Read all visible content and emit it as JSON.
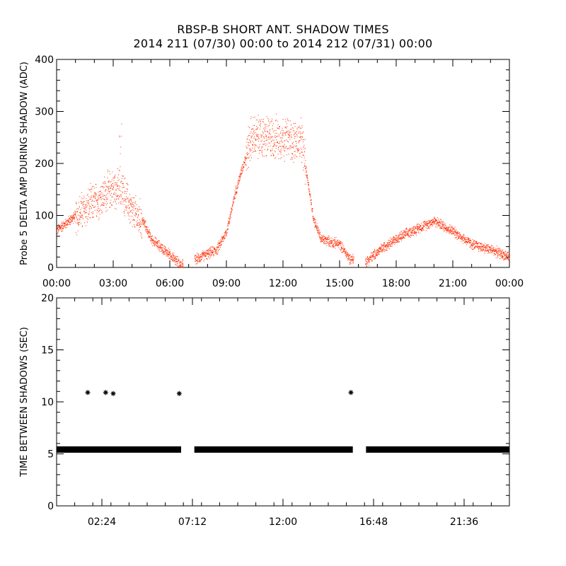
{
  "header": {
    "title_line1": "RBSP-B SHORT ANT. SHADOW TIMES",
    "title_line2": "2014 211 (07/30) 00:00 to 2014 212 (07/31) 00:00"
  },
  "colors": {
    "top_series": "#ff2a00",
    "bottom_series": "#000000",
    "axes": "#000000"
  },
  "chart_data": [
    {
      "type": "scatter",
      "ylabel": "Probe 5 DELTA AMP DURING SHADOW (ADC)",
      "ylim": [
        0,
        400
      ],
      "yticks": [
        "0",
        "100",
        "200",
        "300",
        "400"
      ],
      "xlim_hours": [
        0,
        24
      ],
      "xtick_labels": [
        "00:00",
        "03:00",
        "06:00",
        "09:00",
        "12:00",
        "15:00",
        "18:00",
        "21:00",
        "00:00"
      ],
      "series": [
        {
          "marker": "dot",
          "color": "#ff2a00",
          "envelope": [
            {
              "x": 0.0,
              "y": 72
            },
            {
              "x": 1.0,
              "y": 100
            },
            {
              "x": 2.0,
              "y": 125
            },
            {
              "x": 2.8,
              "y": 150
            },
            {
              "x": 3.4,
              "y": 155
            },
            {
              "x": 4.0,
              "y": 105
            },
            {
              "x": 4.6,
              "y": 88
            },
            {
              "x": 5.0,
              "y": 55
            },
            {
              "x": 6.0,
              "y": 25
            },
            {
              "x": 6.6,
              "y": 5
            },
            {
              "x": 7.3,
              "y": 15
            },
            {
              "x": 8.5,
              "y": 35
            },
            {
              "x": 9.0,
              "y": 70
            },
            {
              "x": 9.5,
              "y": 150
            },
            {
              "x": 10.3,
              "y": 250
            },
            {
              "x": 12.0,
              "y": 250
            },
            {
              "x": 13.0,
              "y": 240
            },
            {
              "x": 13.6,
              "y": 95
            },
            {
              "x": 14.0,
              "y": 55
            },
            {
              "x": 15.0,
              "y": 45
            },
            {
              "x": 15.5,
              "y": 18
            },
            {
              "x": 16.4,
              "y": 12
            },
            {
              "x": 17.5,
              "y": 45
            },
            {
              "x": 18.5,
              "y": 65
            },
            {
              "x": 20.0,
              "y": 90
            },
            {
              "x": 21.0,
              "y": 70
            },
            {
              "x": 22.0,
              "y": 45
            },
            {
              "x": 23.0,
              "y": 35
            },
            {
              "x": 24.0,
              "y": 20
            }
          ]
        }
      ]
    },
    {
      "type": "scatter",
      "ylabel": "TIME BETWEEN SHADOWS (SEC)",
      "ylim": [
        0,
        20
      ],
      "yticks": [
        "0",
        "5",
        "10",
        "15",
        "20"
      ],
      "xlim_hours": [
        0,
        24
      ],
      "xtick_labels": [
        "02:24",
        "07:12",
        "12:00",
        "16:48",
        "21:36"
      ],
      "series": [
        {
          "marker": "asterisk",
          "color": "#000000",
          "baseline_value": 5.45,
          "baseline_segments_hours": [
            [
              0.0,
              6.6
            ],
            [
              7.3,
              15.7
            ],
            [
              16.4,
              24.0
            ]
          ],
          "outliers": [
            {
              "x": 1.65,
              "y": 10.9
            },
            {
              "x": 2.6,
              "y": 10.9
            },
            {
              "x": 3.0,
              "y": 10.8
            },
            {
              "x": 6.5,
              "y": 10.8
            },
            {
              "x": 15.6,
              "y": 10.9
            }
          ]
        }
      ]
    }
  ]
}
